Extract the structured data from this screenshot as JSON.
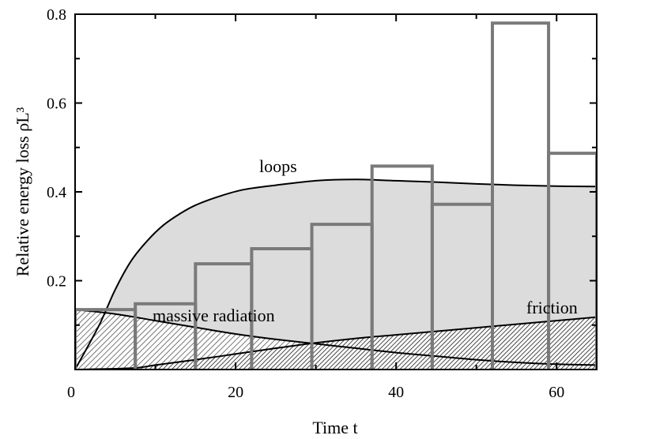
{
  "chart_data": {
    "type": "line",
    "xlabel": "Time t",
    "ylabel": "Relative energy loss ρ̇L³",
    "xlim": [
      0,
      65
    ],
    "ylim": [
      0,
      0.8
    ],
    "x_ticks": [
      "0",
      "20",
      "40",
      "60"
    ],
    "y_ticks": [
      "0.2",
      "0.4",
      "0.6",
      "0.8"
    ],
    "grid": false,
    "series": [
      {
        "name": "loops",
        "style": "curve, gray fill",
        "x": [
          0,
          3,
          5,
          7,
          9,
          11,
          13,
          15,
          18,
          21,
          25,
          30,
          35,
          40,
          45,
          50,
          55,
          60,
          65
        ],
        "y": [
          0,
          0.1,
          0.18,
          0.245,
          0.29,
          0.325,
          0.35,
          0.37,
          0.39,
          0.405,
          0.415,
          0.425,
          0.428,
          0.425,
          0.422,
          0.418,
          0.415,
          0.413,
          0.412
        ]
      },
      {
        "name": "massive radiation",
        "style": "curve, hatched fill",
        "x": [
          0,
          5,
          10,
          15,
          20,
          25,
          30,
          35,
          40,
          45,
          50,
          55,
          60,
          65
        ],
        "y": [
          0.135,
          0.125,
          0.11,
          0.095,
          0.08,
          0.068,
          0.058,
          0.048,
          0.038,
          0.03,
          0.022,
          0.016,
          0.012,
          0.01
        ]
      },
      {
        "name": "friction",
        "style": "curve, hatched fill",
        "x": [
          0,
          7,
          10,
          15,
          20,
          25,
          30,
          35,
          40,
          45,
          50,
          55,
          60,
          65
        ],
        "y": [
          0,
          0.003,
          0.01,
          0.022,
          0.035,
          0.048,
          0.06,
          0.07,
          0.078,
          0.086,
          0.094,
          0.102,
          0.11,
          0.118
        ]
      },
      {
        "name": "",
        "style": "histogram",
        "bin_edges": [
          0,
          7.5,
          15,
          22,
          29.5,
          37,
          44.5,
          52,
          59,
          65
        ],
        "values": [
          0.135,
          0.148,
          0.238,
          0.272,
          0.327,
          0.458,
          0.372,
          0.78,
          0.487
        ]
      }
    ],
    "annotations": [
      "loops",
      "massive radiation",
      "friction"
    ],
    "colors": {
      "loops_fill": "#dcdcdc",
      "histogram": "#7a7a7a",
      "curves": "#000000"
    }
  }
}
